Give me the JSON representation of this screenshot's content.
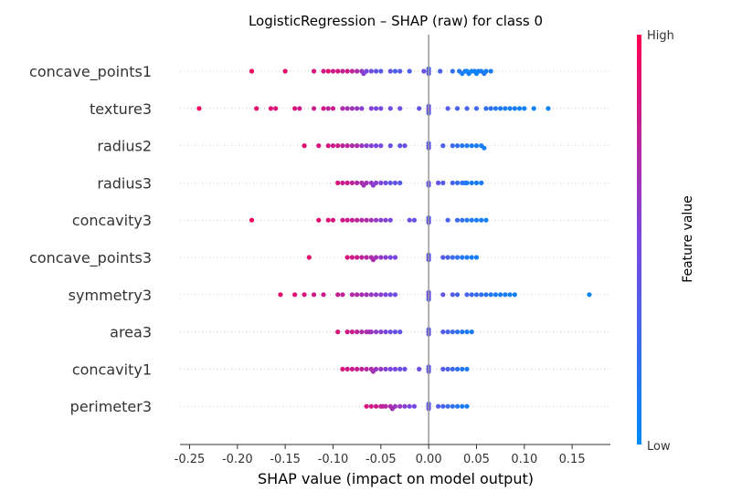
{
  "chart_data": {
    "type": "scatter",
    "title": "LogisticRegression – SHAP (raw) for class 0",
    "xlabel": "SHAP value (impact on model output)",
    "xlim": [
      -0.26,
      0.19
    ],
    "xticks": [
      "-0.25",
      "-0.20",
      "-0.15",
      "-0.10",
      "-0.05",
      "0.00",
      "0.05",
      "0.10",
      "0.15"
    ],
    "xtick_values": [
      -0.25,
      -0.2,
      -0.15,
      -0.1,
      -0.05,
      0.0,
      0.05,
      0.1,
      0.15
    ],
    "colorbar": {
      "label": "Feature value",
      "high": "High",
      "low": "Low",
      "color_high": "#ff0052",
      "color_low": "#008bfb"
    },
    "features": [
      {
        "name": "concave_points1",
        "points": [
          [
            -0.185,
            0.95
          ],
          [
            -0.15,
            0.9
          ],
          [
            -0.12,
            0.85
          ],
          [
            -0.11,
            0.82
          ],
          [
            -0.105,
            0.9
          ],
          [
            -0.1,
            0.8
          ],
          [
            -0.095,
            0.85
          ],
          [
            -0.09,
            0.78
          ],
          [
            -0.085,
            0.82
          ],
          [
            -0.08,
            0.75
          ],
          [
            -0.075,
            0.7
          ],
          [
            -0.07,
            0.6
          ],
          [
            -0.068,
            0.55
          ],
          [
            -0.065,
            0.5
          ],
          [
            -0.06,
            0.45
          ],
          [
            -0.055,
            0.4
          ],
          [
            -0.05,
            0.35
          ],
          [
            -0.04,
            0.4
          ],
          [
            -0.035,
            0.3
          ],
          [
            -0.03,
            0.35
          ],
          [
            -0.02,
            0.3
          ],
          [
            -0.005,
            0.45
          ],
          [
            0.0,
            0.4
          ],
          [
            0.0,
            0.35
          ],
          [
            0.0,
            0.3
          ],
          [
            0.012,
            0.3
          ],
          [
            0.025,
            0.2
          ],
          [
            0.032,
            0.15
          ],
          [
            0.035,
            0.1
          ],
          [
            0.038,
            0.1
          ],
          [
            0.04,
            0.05
          ],
          [
            0.042,
            0.08
          ],
          [
            0.045,
            0.05
          ],
          [
            0.048,
            0.1
          ],
          [
            0.05,
            0.05
          ],
          [
            0.052,
            0.08
          ],
          [
            0.055,
            0.1
          ],
          [
            0.058,
            0.15
          ],
          [
            0.06,
            0.1
          ],
          [
            0.065,
            0.12
          ]
        ]
      },
      {
        "name": "texture3",
        "points": [
          [
            -0.24,
            0.95
          ],
          [
            -0.18,
            0.9
          ],
          [
            -0.165,
            0.88
          ],
          [
            -0.16,
            0.85
          ],
          [
            -0.14,
            0.85
          ],
          [
            -0.135,
            0.8
          ],
          [
            -0.12,
            0.8
          ],
          [
            -0.11,
            0.82
          ],
          [
            -0.105,
            0.75
          ],
          [
            -0.1,
            0.8
          ],
          [
            -0.09,
            0.7
          ],
          [
            -0.085,
            0.65
          ],
          [
            -0.08,
            0.65
          ],
          [
            -0.075,
            0.6
          ],
          [
            -0.07,
            0.55
          ],
          [
            -0.06,
            0.55
          ],
          [
            -0.055,
            0.5
          ],
          [
            -0.05,
            0.5
          ],
          [
            -0.04,
            0.45
          ],
          [
            -0.03,
            0.45
          ],
          [
            -0.01,
            0.4
          ],
          [
            0.0,
            0.5
          ],
          [
            0.0,
            0.45
          ],
          [
            0.0,
            0.4
          ],
          [
            0.0,
            0.35
          ],
          [
            0.02,
            0.35
          ],
          [
            0.03,
            0.3
          ],
          [
            0.04,
            0.3
          ],
          [
            0.05,
            0.25
          ],
          [
            0.06,
            0.2
          ],
          [
            0.065,
            0.2
          ],
          [
            0.07,
            0.15
          ],
          [
            0.075,
            0.12
          ],
          [
            0.08,
            0.12
          ],
          [
            0.085,
            0.1
          ],
          [
            0.09,
            0.1
          ],
          [
            0.095,
            0.08
          ],
          [
            0.1,
            0.08
          ],
          [
            0.11,
            0.05
          ],
          [
            0.125,
            0.05
          ]
        ]
      },
      {
        "name": "radius2",
        "points": [
          [
            -0.13,
            0.9
          ],
          [
            -0.115,
            0.85
          ],
          [
            -0.105,
            0.85
          ],
          [
            -0.1,
            0.8
          ],
          [
            -0.095,
            0.82
          ],
          [
            -0.09,
            0.75
          ],
          [
            -0.085,
            0.75
          ],
          [
            -0.08,
            0.7
          ],
          [
            -0.075,
            0.68
          ],
          [
            -0.07,
            0.62
          ],
          [
            -0.065,
            0.55
          ],
          [
            -0.06,
            0.55
          ],
          [
            -0.055,
            0.5
          ],
          [
            -0.05,
            0.5
          ],
          [
            -0.04,
            0.45
          ],
          [
            -0.03,
            0.4
          ],
          [
            -0.025,
            0.45
          ],
          [
            0.0,
            0.45
          ],
          [
            0.0,
            0.4
          ],
          [
            0.0,
            0.35
          ],
          [
            0.015,
            0.3
          ],
          [
            0.025,
            0.25
          ],
          [
            0.03,
            0.2
          ],
          [
            0.035,
            0.15
          ],
          [
            0.04,
            0.12
          ],
          [
            0.045,
            0.1
          ],
          [
            0.05,
            0.1
          ],
          [
            0.055,
            0.08
          ],
          [
            0.058,
            0.1
          ]
        ]
      },
      {
        "name": "radius3",
        "points": [
          [
            -0.095,
            0.85
          ],
          [
            -0.09,
            0.8
          ],
          [
            -0.085,
            0.8
          ],
          [
            -0.08,
            0.75
          ],
          [
            -0.075,
            0.7
          ],
          [
            -0.07,
            0.7
          ],
          [
            -0.068,
            0.65
          ],
          [
            -0.065,
            0.65
          ],
          [
            -0.06,
            0.6
          ],
          [
            -0.058,
            0.55
          ],
          [
            -0.055,
            0.55
          ],
          [
            -0.05,
            0.5
          ],
          [
            -0.045,
            0.45
          ],
          [
            -0.04,
            0.4
          ],
          [
            -0.035,
            0.4
          ],
          [
            -0.03,
            0.35
          ],
          [
            0.0,
            0.45
          ],
          [
            0.0,
            0.4
          ],
          [
            0.01,
            0.4
          ],
          [
            0.015,
            0.35
          ],
          [
            0.025,
            0.3
          ],
          [
            0.03,
            0.25
          ],
          [
            0.035,
            0.2
          ],
          [
            0.038,
            0.15
          ],
          [
            0.04,
            0.12
          ],
          [
            0.045,
            0.1
          ],
          [
            0.05,
            0.1
          ],
          [
            0.055,
            0.1
          ]
        ]
      },
      {
        "name": "concavity3",
        "points": [
          [
            -0.185,
            0.95
          ],
          [
            -0.115,
            0.9
          ],
          [
            -0.105,
            0.88
          ],
          [
            -0.1,
            0.85
          ],
          [
            -0.09,
            0.82
          ],
          [
            -0.085,
            0.8
          ],
          [
            -0.08,
            0.78
          ],
          [
            -0.075,
            0.75
          ],
          [
            -0.07,
            0.72
          ],
          [
            -0.065,
            0.7
          ],
          [
            -0.06,
            0.65
          ],
          [
            -0.055,
            0.6
          ],
          [
            -0.05,
            0.55
          ],
          [
            -0.045,
            0.55
          ],
          [
            -0.04,
            0.5
          ],
          [
            -0.02,
            0.45
          ],
          [
            -0.015,
            0.4
          ],
          [
            0.0,
            0.45
          ],
          [
            0.0,
            0.4
          ],
          [
            0.0,
            0.35
          ],
          [
            0.02,
            0.3
          ],
          [
            0.03,
            0.25
          ],
          [
            0.035,
            0.2
          ],
          [
            0.04,
            0.15
          ],
          [
            0.045,
            0.12
          ],
          [
            0.05,
            0.1
          ],
          [
            0.055,
            0.1
          ],
          [
            0.06,
            0.08
          ]
        ]
      },
      {
        "name": "concave_points3",
        "points": [
          [
            -0.125,
            0.9
          ],
          [
            -0.085,
            0.85
          ],
          [
            -0.08,
            0.82
          ],
          [
            -0.075,
            0.8
          ],
          [
            -0.07,
            0.75
          ],
          [
            -0.065,
            0.72
          ],
          [
            -0.06,
            0.7
          ],
          [
            -0.058,
            0.68
          ],
          [
            -0.055,
            0.65
          ],
          [
            -0.05,
            0.6
          ],
          [
            -0.045,
            0.55
          ],
          [
            -0.04,
            0.5
          ],
          [
            -0.035,
            0.5
          ],
          [
            0.0,
            0.45
          ],
          [
            0.0,
            0.4
          ],
          [
            0.0,
            0.35
          ],
          [
            0.015,
            0.35
          ],
          [
            0.02,
            0.3
          ],
          [
            0.025,
            0.25
          ],
          [
            0.03,
            0.2
          ],
          [
            0.035,
            0.15
          ],
          [
            0.04,
            0.12
          ],
          [
            0.045,
            0.1
          ],
          [
            0.05,
            0.1
          ]
        ]
      },
      {
        "name": "symmetry3",
        "points": [
          [
            -0.155,
            0.9
          ],
          [
            -0.14,
            0.88
          ],
          [
            -0.13,
            0.85
          ],
          [
            -0.12,
            0.82
          ],
          [
            -0.11,
            0.8
          ],
          [
            -0.095,
            0.78
          ],
          [
            -0.09,
            0.75
          ],
          [
            -0.08,
            0.72
          ],
          [
            -0.075,
            0.7
          ],
          [
            -0.07,
            0.68
          ],
          [
            -0.065,
            0.65
          ],
          [
            -0.06,
            0.6
          ],
          [
            -0.055,
            0.58
          ],
          [
            -0.05,
            0.55
          ],
          [
            -0.045,
            0.5
          ],
          [
            -0.04,
            0.48
          ],
          [
            -0.035,
            0.45
          ],
          [
            0.0,
            0.5
          ],
          [
            0.0,
            0.45
          ],
          [
            0.0,
            0.4
          ],
          [
            0.0,
            0.35
          ],
          [
            0.015,
            0.4
          ],
          [
            0.025,
            0.35
          ],
          [
            0.03,
            0.3
          ],
          [
            0.04,
            0.28
          ],
          [
            0.045,
            0.25
          ],
          [
            0.05,
            0.22
          ],
          [
            0.055,
            0.2
          ],
          [
            0.06,
            0.18
          ],
          [
            0.065,
            0.15
          ],
          [
            0.07,
            0.12
          ],
          [
            0.075,
            0.1
          ],
          [
            0.08,
            0.1
          ],
          [
            0.085,
            0.08
          ],
          [
            0.09,
            0.08
          ],
          [
            0.168,
            0.05
          ]
        ]
      },
      {
        "name": "area3",
        "points": [
          [
            -0.095,
            0.85
          ],
          [
            -0.085,
            0.82
          ],
          [
            -0.08,
            0.8
          ],
          [
            -0.075,
            0.75
          ],
          [
            -0.07,
            0.7
          ],
          [
            -0.065,
            0.68
          ],
          [
            -0.062,
            0.65
          ],
          [
            -0.06,
            0.62
          ],
          [
            -0.055,
            0.58
          ],
          [
            -0.05,
            0.55
          ],
          [
            -0.045,
            0.5
          ],
          [
            -0.04,
            0.45
          ],
          [
            -0.035,
            0.42
          ],
          [
            -0.03,
            0.4
          ],
          [
            0.0,
            0.45
          ],
          [
            0.0,
            0.4
          ],
          [
            0.0,
            0.35
          ],
          [
            0.015,
            0.35
          ],
          [
            0.02,
            0.3
          ],
          [
            0.025,
            0.25
          ],
          [
            0.03,
            0.2
          ],
          [
            0.035,
            0.15
          ],
          [
            0.04,
            0.12
          ],
          [
            0.045,
            0.1
          ]
        ]
      },
      {
        "name": "concavity1",
        "points": [
          [
            -0.09,
            0.85
          ],
          [
            -0.085,
            0.82
          ],
          [
            -0.08,
            0.8
          ],
          [
            -0.075,
            0.78
          ],
          [
            -0.07,
            0.75
          ],
          [
            -0.065,
            0.72
          ],
          [
            -0.06,
            0.7
          ],
          [
            -0.058,
            0.65
          ],
          [
            -0.055,
            0.62
          ],
          [
            -0.05,
            0.6
          ],
          [
            -0.045,
            0.55
          ],
          [
            -0.04,
            0.5
          ],
          [
            -0.035,
            0.5
          ],
          [
            -0.03,
            0.45
          ],
          [
            -0.025,
            0.45
          ],
          [
            -0.01,
            0.45
          ],
          [
            0.0,
            0.45
          ],
          [
            0.0,
            0.4
          ],
          [
            0.0,
            0.35
          ],
          [
            0.015,
            0.35
          ],
          [
            0.02,
            0.3
          ],
          [
            0.025,
            0.25
          ],
          [
            0.03,
            0.2
          ],
          [
            0.035,
            0.15
          ],
          [
            0.04,
            0.12
          ]
        ]
      },
      {
        "name": "perimeter3",
        "points": [
          [
            -0.065,
            0.85
          ],
          [
            -0.06,
            0.82
          ],
          [
            -0.055,
            0.8
          ],
          [
            -0.05,
            0.78
          ],
          [
            -0.048,
            0.75
          ],
          [
            -0.045,
            0.72
          ],
          [
            -0.04,
            0.7
          ],
          [
            -0.038,
            0.65
          ],
          [
            -0.035,
            0.62
          ],
          [
            -0.03,
            0.6
          ],
          [
            -0.025,
            0.55
          ],
          [
            -0.02,
            0.5
          ],
          [
            -0.015,
            0.5
          ],
          [
            0.0,
            0.45
          ],
          [
            0.0,
            0.4
          ],
          [
            0.0,
            0.35
          ],
          [
            0.01,
            0.35
          ],
          [
            0.015,
            0.3
          ],
          [
            0.02,
            0.25
          ],
          [
            0.025,
            0.2
          ],
          [
            0.03,
            0.15
          ],
          [
            0.035,
            0.12
          ],
          [
            0.04,
            0.1
          ]
        ]
      }
    ]
  }
}
